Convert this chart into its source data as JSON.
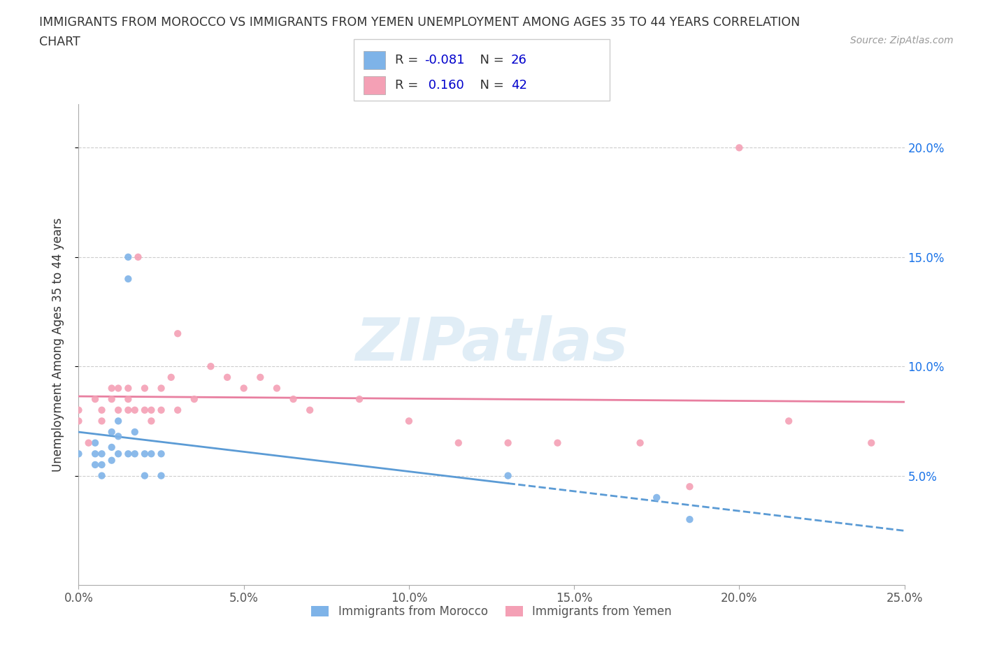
{
  "title_line1": "IMMIGRANTS FROM MOROCCO VS IMMIGRANTS FROM YEMEN UNEMPLOYMENT AMONG AGES 35 TO 44 YEARS CORRELATION",
  "title_line2": "CHART",
  "source": "Source: ZipAtlas.com",
  "ylabel": "Unemployment Among Ages 35 to 44 years",
  "watermark": "ZIPatlas",
  "xlim": [
    0.0,
    0.25
  ],
  "ylim": [
    0.0,
    0.22
  ],
  "xticks": [
    0.0,
    0.05,
    0.1,
    0.15,
    0.2,
    0.25
  ],
  "yticks": [
    0.05,
    0.1,
    0.15,
    0.2
  ],
  "ytick_labels": [
    "5.0%",
    "10.0%",
    "15.0%",
    "20.0%"
  ],
  "xtick_labels": [
    "0.0%",
    "5.0%",
    "10.0%",
    "15.0%",
    "20.0%",
    "25.0%"
  ],
  "morocco_color": "#7eb3e8",
  "yemen_color": "#f4a0b5",
  "morocco_line_color": "#5b9bd5",
  "yemen_line_color": "#e87fa0",
  "morocco_R": -0.081,
  "morocco_N": 26,
  "yemen_R": 0.16,
  "yemen_N": 42,
  "morocco_scatter_x": [
    0.0,
    0.005,
    0.005,
    0.005,
    0.007,
    0.007,
    0.007,
    0.01,
    0.01,
    0.01,
    0.012,
    0.012,
    0.012,
    0.015,
    0.015,
    0.015,
    0.017,
    0.017,
    0.02,
    0.02,
    0.022,
    0.025,
    0.025,
    0.13,
    0.175,
    0.185
  ],
  "morocco_scatter_y": [
    0.06,
    0.065,
    0.06,
    0.055,
    0.06,
    0.055,
    0.05,
    0.07,
    0.063,
    0.057,
    0.075,
    0.068,
    0.06,
    0.15,
    0.14,
    0.06,
    0.07,
    0.06,
    0.06,
    0.05,
    0.06,
    0.06,
    0.05,
    0.05,
    0.04,
    0.03
  ],
  "yemen_scatter_x": [
    0.0,
    0.0,
    0.003,
    0.005,
    0.007,
    0.007,
    0.01,
    0.01,
    0.012,
    0.012,
    0.015,
    0.015,
    0.015,
    0.017,
    0.018,
    0.02,
    0.02,
    0.022,
    0.022,
    0.025,
    0.025,
    0.028,
    0.03,
    0.03,
    0.035,
    0.04,
    0.045,
    0.05,
    0.055,
    0.06,
    0.065,
    0.07,
    0.085,
    0.1,
    0.115,
    0.13,
    0.145,
    0.17,
    0.185,
    0.2,
    0.215,
    0.24
  ],
  "yemen_scatter_y": [
    0.08,
    0.075,
    0.065,
    0.085,
    0.08,
    0.075,
    0.09,
    0.085,
    0.08,
    0.09,
    0.08,
    0.09,
    0.085,
    0.08,
    0.15,
    0.08,
    0.09,
    0.08,
    0.075,
    0.08,
    0.09,
    0.095,
    0.115,
    0.08,
    0.085,
    0.1,
    0.095,
    0.09,
    0.095,
    0.09,
    0.085,
    0.08,
    0.085,
    0.075,
    0.065,
    0.065,
    0.065,
    0.065,
    0.045,
    0.2,
    0.075,
    0.065
  ],
  "background_color": "#ffffff",
  "grid_color": "#cccccc",
  "title_color": "#333333",
  "legend_r_color": "#0000cc",
  "axis_color": "#555555",
  "right_tick_color": "#1a73e8"
}
